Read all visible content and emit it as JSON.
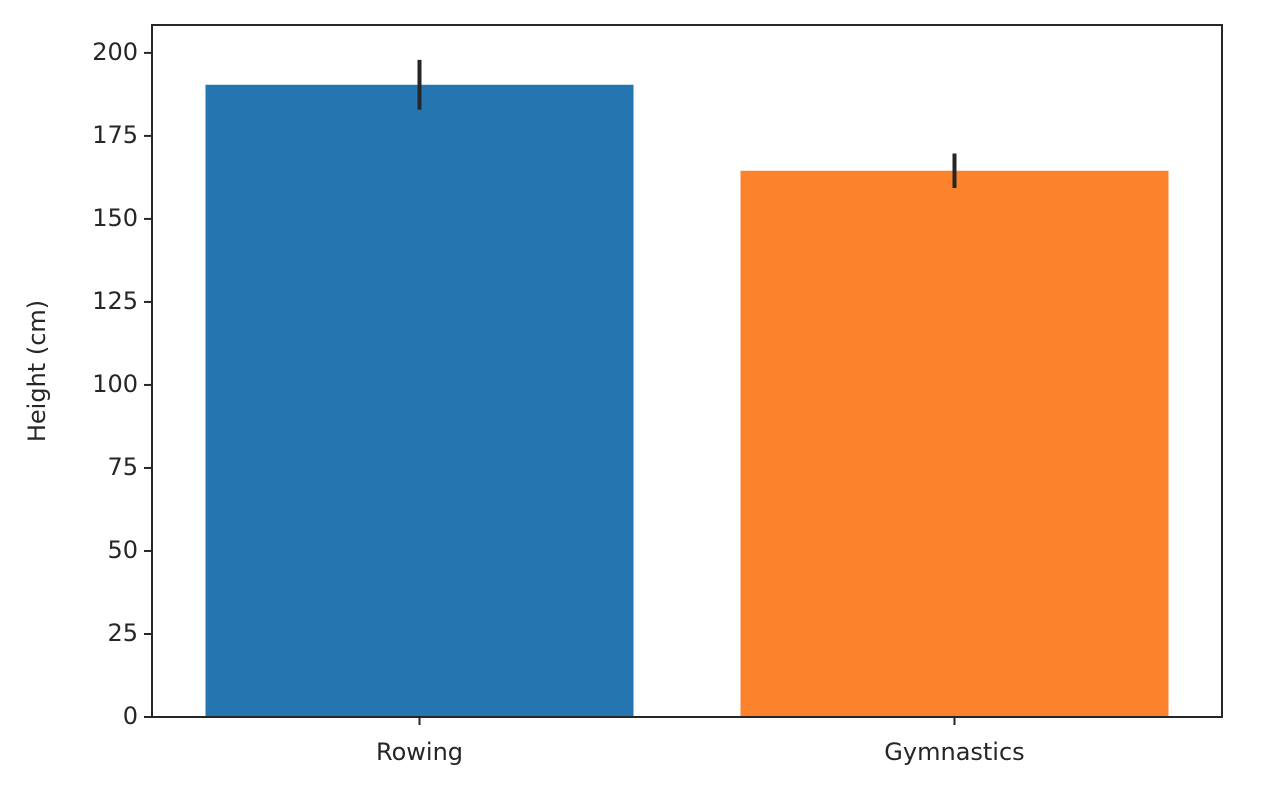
{
  "chart_data": {
    "type": "bar",
    "y_label": "Height (cm)",
    "categories": [
      "Rowing",
      "Gymnastics"
    ],
    "values": [
      190.4,
      164.5
    ],
    "errors": [
      7.5,
      5.2
    ],
    "colors": [
      "#2576b0",
      "#fc822b"
    ],
    "error_color": "#262626",
    "ylim": [
      0,
      208.4
    ],
    "yticks": [
      0,
      25,
      50,
      75,
      100,
      125,
      150,
      175,
      200
    ],
    "grid": false
  }
}
